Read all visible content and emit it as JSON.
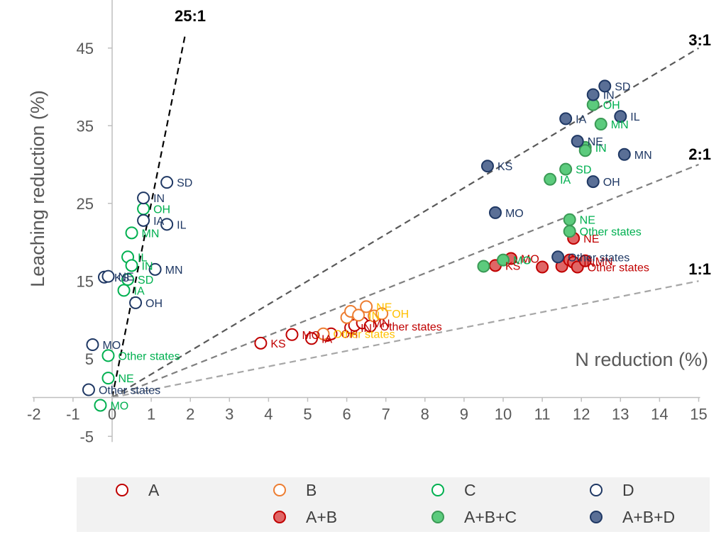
{
  "chart_data": {
    "type": "scatter",
    "title": "",
    "xlabel": "N reduction (%)",
    "ylabel": "Leaching reduction (%)",
    "xlim": [
      -2,
      15
    ],
    "ylim": [
      -5,
      50
    ],
    "x_ticks": [
      -2,
      -1,
      0,
      1,
      2,
      3,
      4,
      5,
      6,
      7,
      8,
      9,
      10,
      11,
      12,
      13,
      14,
      15
    ],
    "y_ticks": [
      -5,
      5,
      15,
      25,
      35,
      45
    ],
    "grid": false,
    "legend_position": "bottom",
    "ratio_lines": [
      {
        "label": "25:1",
        "slope": 25,
        "x_end": 1.86,
        "color": "#000000"
      },
      {
        "label": "3:1",
        "slope": 3,
        "x_end": 15,
        "color": "#595959"
      },
      {
        "label": "2:1",
        "slope": 2,
        "x_end": 15,
        "color": "#7f7f7f"
      },
      {
        "label": "1:1",
        "slope": 1,
        "x_end": 15,
        "color": "#a6a6a6"
      }
    ],
    "series": [
      {
        "name": "A",
        "filled": false,
        "color": "#c00000",
        "label_color": "#c00000",
        "points": [
          {
            "x": 3.8,
            "y": 7.0,
            "label": "KS"
          },
          {
            "x": 4.6,
            "y": 8.1,
            "label": "MO"
          },
          {
            "x": 5.1,
            "y": 7.6,
            "label": "IA"
          },
          {
            "x": 5.5,
            "y": 8.0,
            "label": ""
          },
          {
            "x": 5.6,
            "y": 8.2,
            "label": "OH"
          },
          {
            "x": 6.1,
            "y": 9.0,
            "label": "IN"
          },
          {
            "x": 6.2,
            "y": 9.3,
            "label": ""
          },
          {
            "x": 6.4,
            "y": 9.6,
            "label": "MN"
          },
          {
            "x": 6.6,
            "y": 9.2,
            "label": "Other states"
          }
        ]
      },
      {
        "name": "B",
        "filled": false,
        "color": "#ed7d31",
        "label_color": "#ffc000",
        "points": [
          {
            "x": 5.4,
            "y": 8.2,
            "label": "Other states"
          },
          {
            "x": 6.0,
            "y": 10.3,
            "label": ""
          },
          {
            "x": 6.1,
            "y": 11.1,
            "label": ""
          },
          {
            "x": 6.3,
            "y": 10.6,
            "label": "IN"
          },
          {
            "x": 6.5,
            "y": 11.7,
            "label": "NE"
          },
          {
            "x": 6.7,
            "y": 10.5,
            "label": ""
          },
          {
            "x": 6.9,
            "y": 10.8,
            "label": "OH"
          }
        ]
      },
      {
        "name": "C",
        "filled": false,
        "color": "#00b050",
        "label_color": "#00b050",
        "points": [
          {
            "x": 0.8,
            "y": 24.3,
            "label": "OH"
          },
          {
            "x": 0.5,
            "y": 21.2,
            "label": "MN"
          },
          {
            "x": 0.4,
            "y": 18.1,
            "label": "IL"
          },
          {
            "x": 0.5,
            "y": 17.0,
            "label": "IN"
          },
          {
            "x": 0.4,
            "y": 15.2,
            "label": "SD"
          },
          {
            "x": 0.3,
            "y": 13.8,
            "label": "IA"
          },
          {
            "x": -0.1,
            "y": 5.4,
            "label": "Other states"
          },
          {
            "x": -0.1,
            "y": 2.5,
            "label": "NE"
          },
          {
            "x": -0.3,
            "y": -1.0,
            "label": "MO"
          }
        ]
      },
      {
        "name": "D",
        "filled": false,
        "color": "#1f3864",
        "label_color": "#1f3864",
        "points": [
          {
            "x": 1.4,
            "y": 27.7,
            "label": "SD"
          },
          {
            "x": 0.8,
            "y": 25.7,
            "label": "IN"
          },
          {
            "x": 0.8,
            "y": 22.8,
            "label": "IA"
          },
          {
            "x": 1.4,
            "y": 22.3,
            "label": "IL"
          },
          {
            "x": 1.1,
            "y": 16.5,
            "label": "MN"
          },
          {
            "x": -0.2,
            "y": 15.5,
            "label": "KS"
          },
          {
            "x": -0.1,
            "y": 15.6,
            "label": "NE"
          },
          {
            "x": 0.6,
            "y": 12.2,
            "label": "OH"
          },
          {
            "x": -0.5,
            "y": 6.8,
            "label": "MO"
          },
          {
            "x": -0.6,
            "y": 1.0,
            "label": "Other states"
          }
        ]
      },
      {
        "name": "A+B",
        "filled": true,
        "color": "#c00000",
        "label_color": "#c00000",
        "points": [
          {
            "x": 11.8,
            "y": 20.5,
            "label": "NE"
          },
          {
            "x": 10.2,
            "y": 17.9,
            "label": "MO"
          },
          {
            "x": 9.8,
            "y": 17.0,
            "label": "KS"
          },
          {
            "x": 11.0,
            "y": 16.8,
            "label": ""
          },
          {
            "x": 11.5,
            "y": 16.9,
            "label": ""
          },
          {
            "x": 11.7,
            "y": 17.7,
            "label": ""
          },
          {
            "x": 11.8,
            "y": 17.4,
            "label": "IN"
          },
          {
            "x": 11.9,
            "y": 16.8,
            "label": "Other states"
          },
          {
            "x": 12.1,
            "y": 17.6,
            "label": "MN"
          }
        ]
      },
      {
        "name": "A+B+C",
        "filled": true,
        "color": "#00b050",
        "label_color": "#00b050",
        "points": [
          {
            "x": 12.3,
            "y": 37.7,
            "label": "OH"
          },
          {
            "x": 12.5,
            "y": 35.2,
            "label": "MN"
          },
          {
            "x": 12.1,
            "y": 32.2,
            "label": "IN"
          },
          {
            "x": 12.1,
            "y": 31.8,
            "label": ""
          },
          {
            "x": 11.6,
            "y": 29.4,
            "label": "SD"
          },
          {
            "x": 11.2,
            "y": 28.1,
            "label": "IA"
          },
          {
            "x": 11.7,
            "y": 22.9,
            "label": "NE"
          },
          {
            "x": 11.7,
            "y": 21.4,
            "label": "Other states"
          },
          {
            "x": 10.0,
            "y": 17.7,
            "label": "MO"
          },
          {
            "x": 9.5,
            "y": 16.9,
            "label": ""
          }
        ]
      },
      {
        "name": "A+B+D",
        "filled": true,
        "color": "#44546a",
        "label_color": "#1f3864",
        "points": [
          {
            "x": 12.6,
            "y": 40.1,
            "label": "SD"
          },
          {
            "x": 12.3,
            "y": 39.0,
            "label": "IN"
          },
          {
            "x": 13.0,
            "y": 36.2,
            "label": "IL"
          },
          {
            "x": 11.6,
            "y": 35.9,
            "label": "IA"
          },
          {
            "x": 11.9,
            "y": 33.0,
            "label": "NE"
          },
          {
            "x": 13.1,
            "y": 31.3,
            "label": "MN"
          },
          {
            "x": 12.3,
            "y": 27.8,
            "label": "OH"
          },
          {
            "x": 9.6,
            "y": 29.8,
            "label": "KS"
          },
          {
            "x": 9.8,
            "y": 23.8,
            "label": "MO"
          },
          {
            "x": 11.4,
            "y": 18.1,
            "label": "Other states"
          }
        ]
      }
    ]
  }
}
